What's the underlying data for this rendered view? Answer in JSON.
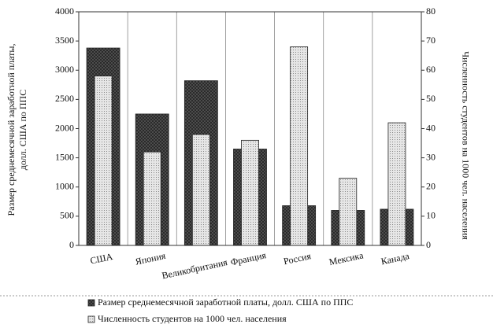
{
  "chart_data": {
    "type": "bar",
    "categories": [
      "США",
      "Япония",
      "Великобритания",
      "Франция",
      "Россия",
      "Мексика",
      "Канада"
    ],
    "ylabel": [
      "Размер среднемесячной заработной платы,",
      "долл. США по ППС"
    ],
    "y2label": "Численность студентов на 1000 чел. населения",
    "ylim": [
      0,
      4000
    ],
    "yticks": [
      0,
      500,
      1000,
      1500,
      2000,
      2500,
      3000,
      3500,
      4000
    ],
    "y2lim": [
      0,
      80
    ],
    "y2ticks": [
      0,
      10,
      20,
      30,
      40,
      50,
      60,
      70,
      80
    ],
    "series": [
      {
        "name": "Размер среднемесячной заработной платы, долл. США по ППС",
        "color": "#555555",
        "values": [
          3380,
          2250,
          2820,
          1650,
          680,
          600,
          620
        ]
      },
      {
        "name": "Численность студентов на 1000 чел. населения",
        "color": "#e6e6e6",
        "axis": "y2",
        "values": [
          58,
          32,
          38,
          36,
          68,
          23,
          42
        ]
      }
    ],
    "legend": "bottom"
  }
}
